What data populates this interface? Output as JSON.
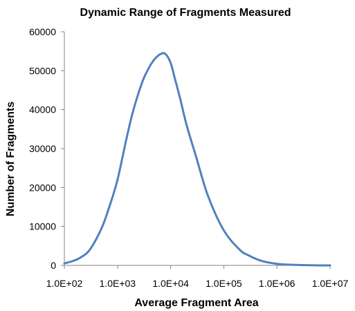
{
  "chart_data": {
    "type": "line",
    "title": "Dynamic Range of Fragments Measured",
    "xlabel": "Average Fragment Area",
    "ylabel": "Number of Fragments",
    "x_scale": "log",
    "xlim": [
      100,
      10000000
    ],
    "ylim": [
      0,
      60000
    ],
    "x_ticks": [
      100,
      1000,
      10000,
      100000,
      1000000,
      10000000
    ],
    "x_tick_labels": [
      "1.0E+02",
      "1.0E+03",
      "1.0E+04",
      "1.0E+05",
      "1.0E+06",
      "1.0E+07"
    ],
    "y_ticks": [
      0,
      10000,
      20000,
      30000,
      40000,
      50000,
      60000
    ],
    "y_tick_labels": [
      "0",
      "10000",
      "20000",
      "30000",
      "40000",
      "50000",
      "60000"
    ],
    "grid": false,
    "legend": "none",
    "series": [
      {
        "color": "#4f81bd",
        "x": [
          100,
          150,
          200,
          300,
          500,
          700,
          1000,
          1500,
          2000,
          3000,
          4000,
          5000,
          6500,
          8000,
          10000,
          12000,
          15000,
          20000,
          30000,
          50000,
          100000,
          200000,
          300000,
          500000,
          1000000,
          2000000,
          5000000,
          10000000
        ],
        "y": [
          500,
          1200,
          2000,
          4000,
          9500,
          15000,
          22000,
          33000,
          40000,
          47500,
          51000,
          53000,
          54300,
          54300,
          52000,
          48000,
          43000,
          36000,
          28000,
          18000,
          9000,
          4000,
          2500,
          1200,
          400,
          150,
          30,
          0
        ]
      }
    ]
  }
}
